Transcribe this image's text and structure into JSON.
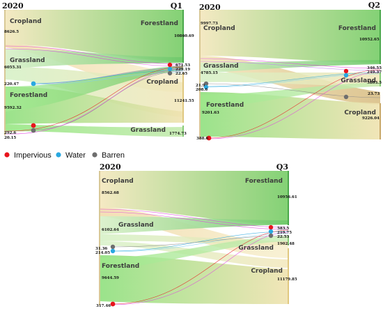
{
  "legend": [
    {
      "label": "Impervious",
      "color": "#e8141c"
    },
    {
      "label": "Water",
      "color": "#29a8e0"
    },
    {
      "label": "Barren",
      "color": "#6e6e6e"
    }
  ],
  "panels": [
    {
      "year_label": "2020",
      "quarter_label": "Q1",
      "left": [
        {
          "label": "Cropland",
          "value": "8626.5"
        },
        {
          "label": "Grassland",
          "value": "6055.31"
        },
        {
          "label": "",
          "value": "220.47"
        },
        {
          "label": "Forestland",
          "value": "9592.32"
        },
        {
          "label": "",
          "value": "292.6"
        },
        {
          "label": "",
          "value": "20.15"
        }
      ],
      "right": [
        {
          "label": "Forestland",
          "value": "10860.69"
        },
        {
          "label": "",
          "value": "671.53"
        },
        {
          "label": "",
          "value": "229.19"
        },
        {
          "label": "",
          "value": "22.65"
        },
        {
          "label": "Cropland",
          "value": "11241.55"
        },
        {
          "label": "Grassland",
          "value": "1774.73"
        }
      ]
    },
    {
      "year_label": "2020",
      "quarter_label": "Q2",
      "left": [
        {
          "label": "Cropland",
          "value": "9997.73"
        },
        {
          "label": "Grassland",
          "value": "4785.15"
        },
        {
          "label": "",
          "value": "21.9"
        },
        {
          "label": "",
          "value": "208.6"
        },
        {
          "label": "Forestland",
          "value": "9201.63"
        },
        {
          "label": "",
          "value": "388.6"
        }
      ],
      "right": [
        {
          "label": "Forestland",
          "value": "10952.65"
        },
        {
          "label": "",
          "value": "346.55"
        },
        {
          "label": "",
          "value": "249.37"
        },
        {
          "label": "Grassland",
          "value": "3803.5"
        },
        {
          "label": "",
          "value": "23.73"
        },
        {
          "label": "Cropland",
          "value": "9226.04"
        }
      ]
    },
    {
      "year_label": "2020",
      "quarter_label": "Q3",
      "left": [
        {
          "label": "Cropland",
          "value": "8562.68"
        },
        {
          "label": "Grassland",
          "value": "6102.64"
        },
        {
          "label": "",
          "value": "31.36"
        },
        {
          "label": "",
          "value": "214.05"
        },
        {
          "label": "Forestland",
          "value": "9644.59"
        },
        {
          "label": "",
          "value": "317.46"
        }
      ],
      "right": [
        {
          "label": "Forestland",
          "value": "10956.61"
        },
        {
          "label": "",
          "value": "583.5"
        },
        {
          "label": "",
          "value": "219.75"
        },
        {
          "label": "",
          "value": "22.53"
        },
        {
          "label": "Grassland",
          "value": "1902.48"
        },
        {
          "label": "Cropland",
          "value": "11179.85"
        }
      ]
    }
  ]
}
